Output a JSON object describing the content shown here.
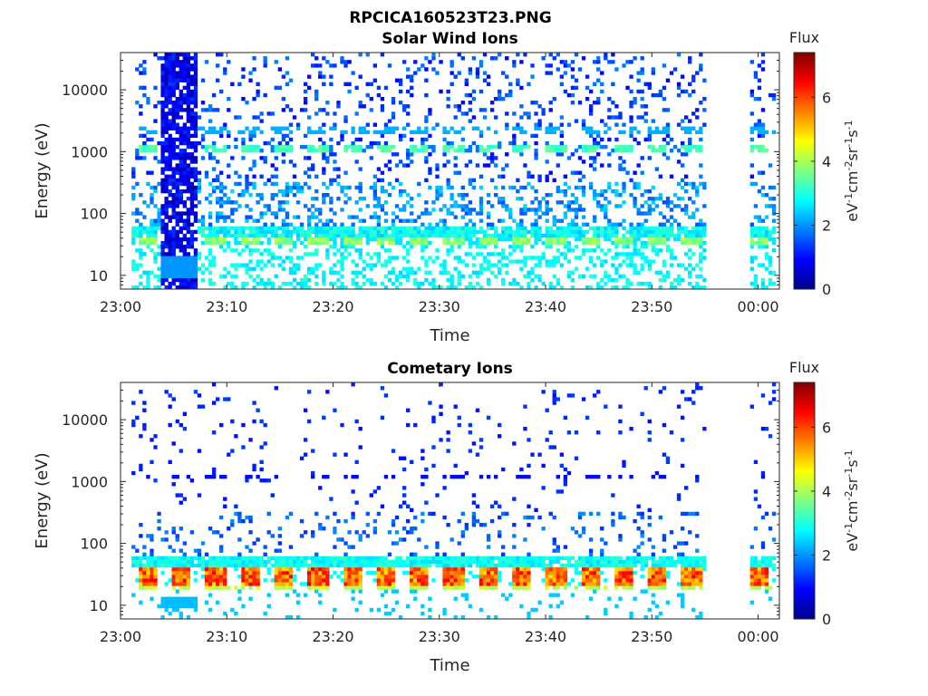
{
  "figure_title": "RPCICA160523T23.PNG",
  "colors": {
    "colormap": [
      "#00008f",
      "#0000ff",
      "#0080ff",
      "#00ffff",
      "#80ff80",
      "#ffff00",
      "#ff8000",
      "#ff0000",
      "#800000"
    ],
    "axis": "#262626",
    "background": "#ffffff"
  },
  "chart_data": [
    {
      "type": "heatmap",
      "title": "Solar Wind Ions",
      "xlabel": "Time",
      "ylabel": "Energy (eV)",
      "y_scale": "log",
      "ylim": [
        6,
        40000
      ],
      "xlim": [
        "23:00",
        "00:02"
      ],
      "x_ticks": [
        "23:00",
        "23:10",
        "23:20",
        "23:30",
        "23:40",
        "23:50",
        "00:00"
      ],
      "y_ticks": [
        "10",
        "100",
        "1000",
        "10000"
      ],
      "colorbar": {
        "label": "Flux",
        "unit": "eV-1cm-2sr-1s-1",
        "range": [
          0,
          7.4
        ],
        "ticks": [
          "0",
          "2",
          "4",
          "6"
        ]
      },
      "data_gap": [
        "23:55",
        "23:59"
      ],
      "features": [
        {
          "time_range": [
            "23:03.5",
            "23:07"
          ],
          "energy_range": [
            6,
            40000
          ],
          "value": 0.6
        },
        {
          "energy_range": [
            30,
            40
          ],
          "value": 3.8
        },
        {
          "energy_range": [
            40,
            55
          ],
          "value": 2.8
        },
        {
          "energy_range": [
            900,
            1200
          ],
          "value": 3.2
        },
        {
          "energy_range": [
            1800,
            2300
          ],
          "value": 2.3
        }
      ]
    },
    {
      "type": "heatmap",
      "title": "Cometary Ions",
      "xlabel": "Time",
      "ylabel": "Energy (eV)",
      "y_scale": "log",
      "ylim": [
        6,
        40000
      ],
      "xlim": [
        "23:00",
        "00:02"
      ],
      "x_ticks": [
        "23:00",
        "23:10",
        "23:20",
        "23:30",
        "23:40",
        "23:50",
        "00:00"
      ],
      "y_ticks": [
        "10",
        "100",
        "1000",
        "10000"
      ],
      "colorbar": {
        "label": "Flux",
        "unit": "eV-1cm-2sr-1s-1",
        "range": [
          0,
          7.4
        ],
        "ticks": [
          "0",
          "2",
          "4",
          "6"
        ]
      },
      "data_gap": [
        "23:55",
        "23:59"
      ],
      "features": [
        {
          "energy_range": [
            20,
            40
          ],
          "value": 6.0
        },
        {
          "energy_range": [
            40,
            60
          ],
          "value": 3.0
        },
        {
          "energy_range": [
            1000,
            1200
          ],
          "value": 1.0
        }
      ]
    }
  ]
}
